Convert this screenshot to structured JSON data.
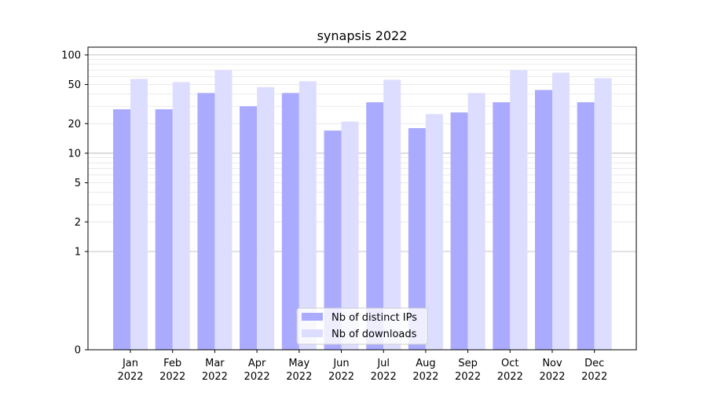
{
  "chart_data": {
    "type": "bar",
    "title": "synapsis 2022",
    "xlabel": "",
    "ylabel": "",
    "yscale": "symlog",
    "ylim": [
      0,
      120
    ],
    "yticks": [
      "0",
      "1",
      "2",
      "5",
      "10",
      "20",
      "50",
      "100"
    ],
    "categories": [
      [
        "Jan",
        "2022"
      ],
      [
        "Feb",
        "2022"
      ],
      [
        "Mar",
        "2022"
      ],
      [
        "Apr",
        "2022"
      ],
      [
        "May",
        "2022"
      ],
      [
        "Jun",
        "2022"
      ],
      [
        "Jul",
        "2022"
      ],
      [
        "Aug",
        "2022"
      ],
      [
        "Sep",
        "2022"
      ],
      [
        "Oct",
        "2022"
      ],
      [
        "Nov",
        "2022"
      ],
      [
        "Dec",
        "2022"
      ]
    ],
    "series": [
      {
        "name": "Nb of distinct IPs",
        "color": "#aaaaff",
        "values": [
          28,
          28,
          41,
          30,
          41,
          17,
          33,
          18,
          26,
          33,
          44,
          33
        ]
      },
      {
        "name": "Nb of downloads",
        "color": "#ddddff",
        "values": [
          57,
          53,
          70,
          47,
          54,
          21,
          56,
          25,
          41,
          70,
          66,
          58
        ]
      }
    ],
    "grid": true,
    "legend_position": "bottom-center"
  }
}
